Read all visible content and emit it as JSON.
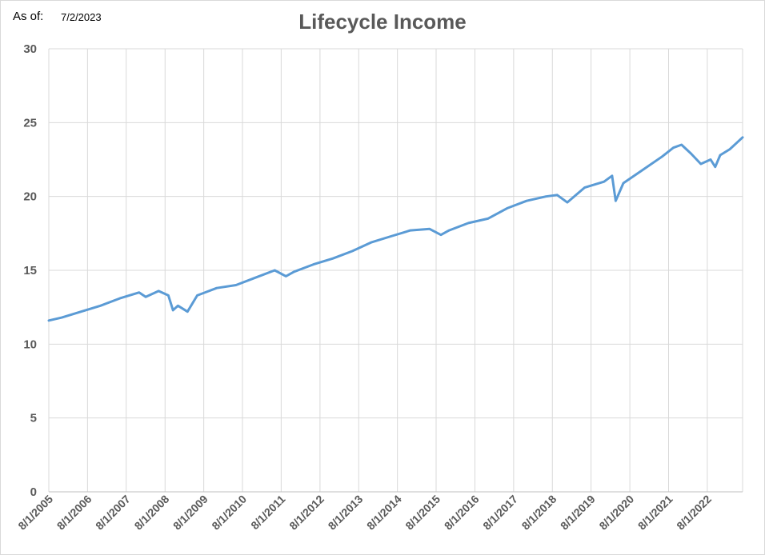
{
  "header": {
    "asof_label": "As of:",
    "asof_value": "7/2/2023"
  },
  "chart_data": {
    "type": "line",
    "title": "Lifecycle Income",
    "xlabel": "",
    "ylabel": "",
    "ylim": [
      0,
      30
    ],
    "yticks": [
      0,
      5,
      10,
      15,
      20,
      25,
      30
    ],
    "xlim": [
      "2005-08-01",
      "2023-06-30"
    ],
    "xtick_labels": [
      "8/1/2005",
      "8/1/2006",
      "8/1/2007",
      "8/1/2008",
      "8/1/2009",
      "8/1/2010",
      "8/1/2011",
      "8/1/2012",
      "8/1/2013",
      "8/1/2014",
      "8/1/2015",
      "8/1/2016",
      "8/1/2017",
      "8/1/2018",
      "8/1/2019",
      "8/1/2020",
      "8/1/2021",
      "8/1/2022"
    ],
    "grid": true,
    "legend": "none",
    "series": [
      {
        "color": "#5b9bd5",
        "x": [
          "2005-08-01",
          "2005-12-01",
          "2006-06-01",
          "2006-12-01",
          "2007-06-01",
          "2007-12-01",
          "2008-02-01",
          "2008-06-01",
          "2008-09-01",
          "2008-10-15",
          "2008-12-01",
          "2009-03-01",
          "2009-06-01",
          "2009-12-01",
          "2010-06-01",
          "2010-12-01",
          "2011-06-01",
          "2011-09-15",
          "2011-12-01",
          "2012-06-01",
          "2012-12-01",
          "2013-06-01",
          "2013-12-01",
          "2014-06-01",
          "2014-12-01",
          "2015-06-01",
          "2015-09-15",
          "2015-12-01",
          "2016-06-01",
          "2016-12-01",
          "2017-06-01",
          "2017-12-01",
          "2018-06-01",
          "2018-09-15",
          "2018-12-20",
          "2019-06-01",
          "2019-12-01",
          "2020-02-15",
          "2020-03-20",
          "2020-06-01",
          "2020-12-01",
          "2021-06-01",
          "2021-09-15",
          "2021-12-01",
          "2022-03-01",
          "2022-06-01",
          "2022-09-01",
          "2022-10-15",
          "2022-12-01",
          "2023-03-01",
          "2023-06-30"
        ],
        "y": [
          11.6,
          11.8,
          12.2,
          12.6,
          13.1,
          13.5,
          13.2,
          13.6,
          13.3,
          12.3,
          12.6,
          12.2,
          13.3,
          13.8,
          14.0,
          14.5,
          15.0,
          14.6,
          14.9,
          15.4,
          15.8,
          16.3,
          16.9,
          17.3,
          17.7,
          17.8,
          17.4,
          17.7,
          18.2,
          18.5,
          19.2,
          19.7,
          20.0,
          20.1,
          19.6,
          20.6,
          21.0,
          21.4,
          19.7,
          20.9,
          21.8,
          22.7,
          23.3,
          23.5,
          22.9,
          22.2,
          22.5,
          22.0,
          22.8,
          23.2,
          24.0
        ]
      }
    ]
  }
}
